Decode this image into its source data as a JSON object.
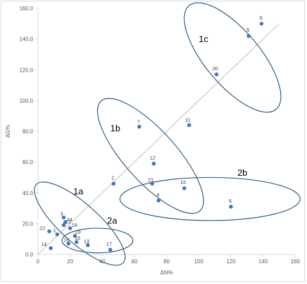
{
  "chart_data": {
    "type": "scatter",
    "title": "",
    "xlabel": "ΔN%",
    "ylabel": "ΔG%",
    "xlim": [
      0,
      160
    ],
    "ylim": [
      0,
      160
    ],
    "x_ticks": [
      "0",
      "20",
      "40",
      "60",
      "80",
      "100",
      "120",
      "140",
      "160"
    ],
    "y_ticks": [
      "0.0",
      "20.0",
      "40.0",
      "60.0",
      "80.0",
      "100.0",
      "120.0",
      "140.0",
      "160.0"
    ],
    "x_tick_values": [
      0,
      20,
      40,
      60,
      80,
      100,
      120,
      140,
      160
    ],
    "y_tick_values": [
      0,
      20,
      40,
      60,
      80,
      100,
      120,
      140,
      160
    ],
    "grid": false,
    "reference_line": {
      "from": [
        0,
        0
      ],
      "to": [
        150,
        150
      ],
      "color": "#bfbfbf"
    },
    "marker_color": "#4472c4",
    "points": [
      {
        "label": "1",
        "x": 12,
        "y": 13
      },
      {
        "label": "2",
        "x": 47,
        "y": 46
      },
      {
        "label": "3",
        "x": 16,
        "y": 24
      },
      {
        "label": "4",
        "x": 75,
        "y": 35
      },
      {
        "label": "5",
        "x": 131,
        "y": 142
      },
      {
        "label": "6",
        "x": 120,
        "y": 31
      },
      {
        "label": "7",
        "x": 63,
        "y": 83
      },
      {
        "label": "9",
        "x": 139,
        "y": 150
      },
      {
        "label": "10",
        "x": 24,
        "y": 8
      },
      {
        "label": "11",
        "x": 94,
        "y": 84
      },
      {
        "label": "12",
        "x": 72,
        "y": 59
      },
      {
        "label": "13",
        "x": 31,
        "y": 6
      },
      {
        "label": "14",
        "x": 8,
        "y": 4
      },
      {
        "label": "15",
        "x": 91,
        "y": 43
      },
      {
        "label": "16",
        "x": 19,
        "y": 7
      },
      {
        "label": "17",
        "x": 45,
        "y": 3
      },
      {
        "label": "18",
        "x": 20,
        "y": 17
      },
      {
        "label": "19",
        "x": 23,
        "y": 12
      },
      {
        "label": "20",
        "x": 111,
        "y": 117
      },
      {
        "label": "21",
        "x": 71,
        "y": 46
      },
      {
        "label": "22",
        "x": 7,
        "y": 15
      },
      {
        "label": "23",
        "x": 16,
        "y": 19
      },
      {
        "label": "24",
        "x": 17,
        "y": 21
      }
    ],
    "groups": [
      {
        "label": "1a",
        "color": "#2e5c8a"
      },
      {
        "label": "1b",
        "color": "#2e5c8a"
      },
      {
        "label": "1c",
        "color": "#2e5c8a"
      },
      {
        "label": "2a",
        "color": "#2e5c8a"
      },
      {
        "label": "2b",
        "color": "#2e5c8a"
      }
    ]
  }
}
